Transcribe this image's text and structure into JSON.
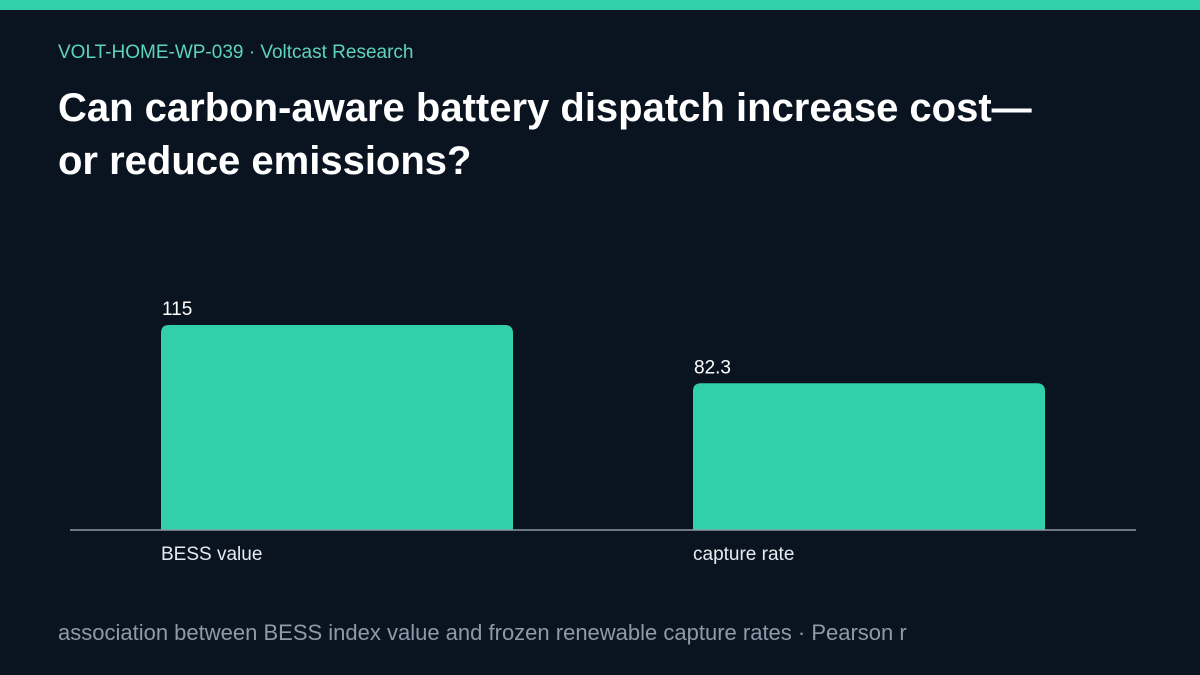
{
  "header": {
    "kicker": "VOLT-HOME-WP-039 · Voltcast Research",
    "title": "Can carbon-aware battery dispatch increase cost—or reduce emissions?"
  },
  "footer": {
    "note": "association between BESS index value and frozen renewable capture rates · Pearson r"
  },
  "colors": {
    "background": "#0a1420",
    "accent": "#31d0aa",
    "bar": "#31d0aa",
    "axis": "#8c9aaa",
    "label": "#ffffff",
    "category_label": "#e6ebf0"
  },
  "chart_data": {
    "type": "bar",
    "categories": [
      "BESS value",
      "capture rate"
    ],
    "values": [
      115,
      82.3
    ],
    "value_labels": [
      "115",
      "82.3"
    ],
    "title": "",
    "xlabel": "",
    "ylabel": "",
    "ylim": [
      0,
      115
    ],
    "grid": false
  }
}
